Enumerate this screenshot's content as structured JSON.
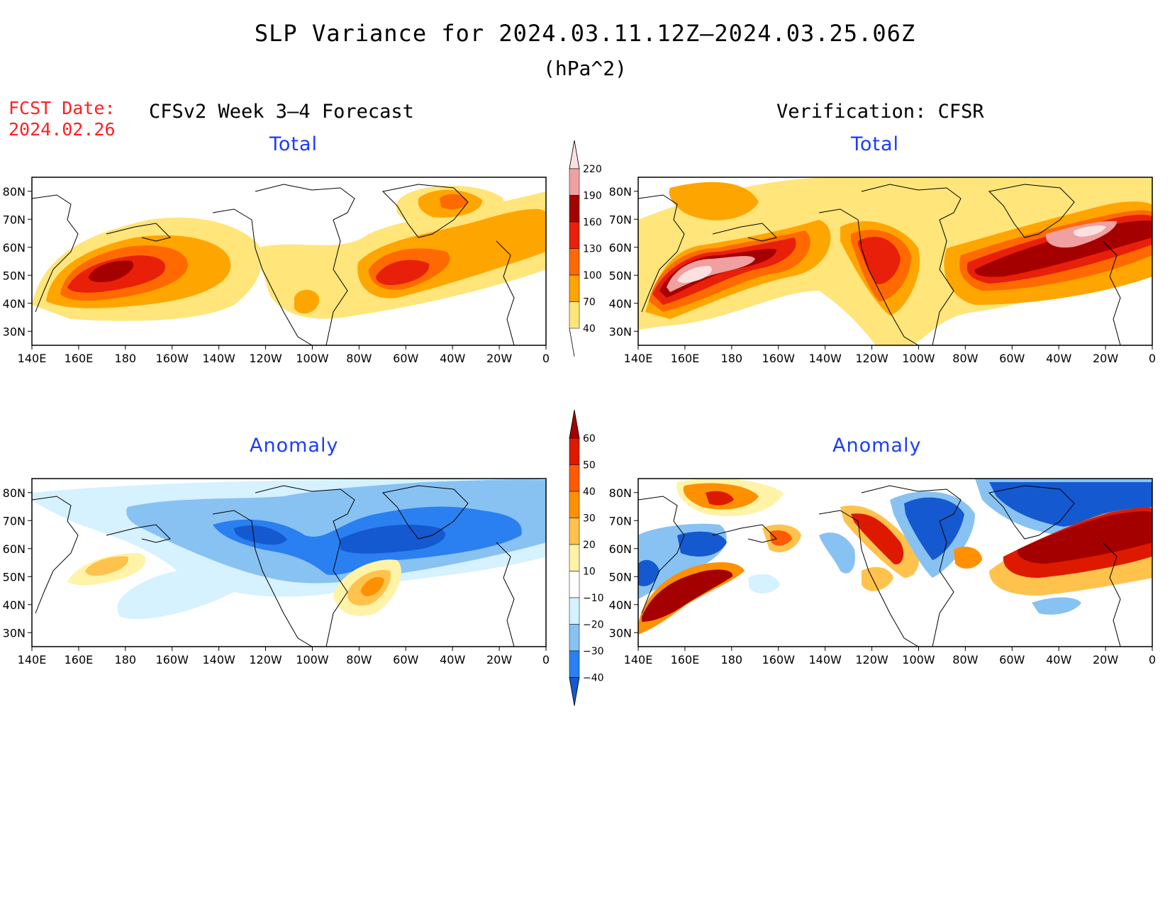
{
  "header": {
    "title": "SLP Variance for 2024.03.11.12Z—2024.03.25.06Z",
    "units": "(hPa^2)",
    "fcst_label": "FCST Date:",
    "fcst_date": "2024.02.26",
    "left_heading": "CFSv2 Week 3—4 Forecast",
    "right_heading": "Verification: CFSR"
  },
  "axes": {
    "lon_labels": [
      "140E",
      "160E",
      "180",
      "160W",
      "140W",
      "120W",
      "100W",
      "80W",
      "60W",
      "40W",
      "20W",
      "0"
    ],
    "lat_labels": [
      "80N",
      "70N",
      "60N",
      "50N",
      "40N",
      "30N"
    ],
    "lon_range": [
      140,
      360
    ],
    "lat_range": [
      25,
      85
    ]
  },
  "panels": [
    {
      "id": "forecast-total",
      "title": "Total",
      "scale": "total"
    },
    {
      "id": "verification-total",
      "title": "Total",
      "scale": "total"
    },
    {
      "id": "forecast-anomaly",
      "title": "Anomaly",
      "scale": "anomaly"
    },
    {
      "id": "verification-anomaly",
      "title": "Anomaly",
      "scale": "anomaly"
    }
  ],
  "colorbars": {
    "total": {
      "labels": [
        "40",
        "70",
        "100",
        "130",
        "160",
        "190",
        "220"
      ],
      "colors": [
        "#ffe57a",
        "#ffa500",
        "#ff6a00",
        "#e8200a",
        "#a50000",
        "#f0a0a0",
        "#fde0e0"
      ]
    },
    "anomaly": {
      "labels": [
        "−40",
        "−30",
        "−20",
        "−10",
        "10",
        "20",
        "30",
        "40",
        "50",
        "60"
      ],
      "colors": [
        "#1559d0",
        "#2a80f0",
        "#88c2f2",
        "#d6f1ff",
        "#ffffff",
        "#fff3a8",
        "#ffc24d",
        "#ff9000",
        "#ff5a00",
        "#dd1a00",
        "#a50000"
      ]
    }
  }
}
